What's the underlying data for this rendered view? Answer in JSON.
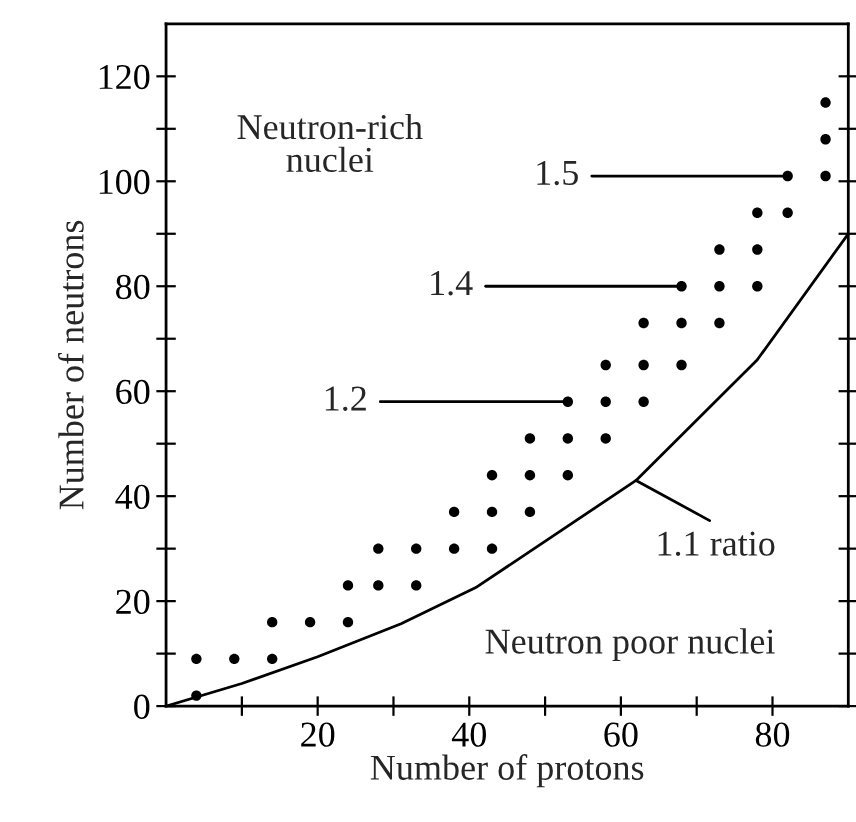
{
  "chart_data": [
    {
      "type": "scatter",
      "xlabel": "Number of protons",
      "ylabel": "Number of neutrons",
      "xlim": [
        0,
        90
      ],
      "ylim": [
        0,
        130
      ],
      "xticks": [
        {
          "value": 10,
          "label": null
        },
        20,
        {
          "value": 30,
          "label": null
        },
        40,
        {
          "value": 50,
          "label": null
        },
        60,
        {
          "value": 70,
          "label": null
        },
        80
      ],
      "yticks": [
        0,
        {
          "value": 10,
          "label": null
        },
        20,
        {
          "value": 30,
          "label": null
        },
        40,
        {
          "value": 50,
          "label": null
        },
        60,
        {
          "value": 70,
          "label": null
        },
        80,
        {
          "value": 90,
          "label": null
        },
        100,
        {
          "value": 110,
          "label": null
        },
        120
      ],
      "grid": false,
      "legend": false,
      "series": [
        {
          "type": "scatter",
          "marker": "circle",
          "color": "#000000",
          "x": [
            4,
            4,
            9,
            14,
            14,
            19,
            24,
            24,
            28,
            28,
            33,
            33,
            38,
            38,
            43,
            43,
            48,
            43,
            48,
            53,
            48,
            53,
            58,
            53,
            58,
            63,
            58,
            63,
            68,
            63,
            68,
            73,
            68,
            73,
            78,
            73,
            78,
            78,
            82,
            82,
            87,
            87,
            87
          ],
          "values": [
            2,
            9,
            9,
            9,
            16,
            16,
            16,
            23,
            23,
            30,
            23,
            30,
            30,
            37,
            30,
            37,
            37,
            44,
            44,
            44,
            51,
            51,
            51,
            58,
            58,
            58,
            65,
            65,
            65,
            73,
            73,
            73,
            80,
            80,
            80,
            87,
            87,
            94,
            94,
            101,
            101,
            108,
            115
          ]
        },
        {
          "type": "line",
          "color": "#000000",
          "line_style": "solid",
          "x": [
            0,
            10,
            20,
            31,
            41,
            62,
            78,
            90
          ],
          "values": [
            0,
            4.3,
            9.4,
            15.7,
            22.7,
            43,
            66,
            90
          ]
        }
      ],
      "annotations": [
        {
          "text": "1.2",
          "x": 53,
          "y": 58
        },
        {
          "text": "1.4",
          "x": 68,
          "y": 80
        },
        {
          "text": "1.5",
          "x": 82,
          "y": 101
        },
        {
          "text": "1.1 ratio",
          "x": 62,
          "y": 43
        },
        "Neutron-rich\nnuclei",
        "Neutron poor nuclei"
      ]
    }
  ]
}
